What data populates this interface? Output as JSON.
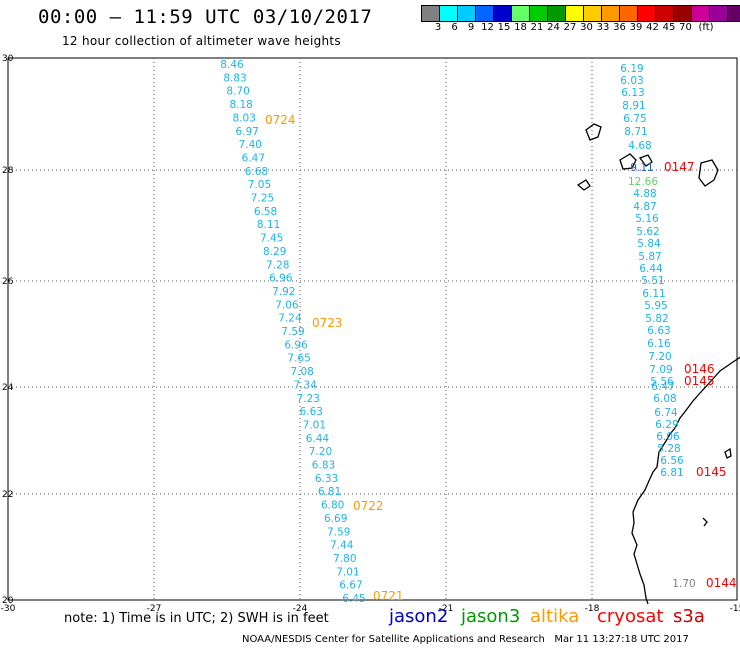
{
  "header": {
    "title": "00:00 – 11:59 UTC 03/10/2017",
    "subtitle": "12 hour collection of altimeter wave heights"
  },
  "colorbar": {
    "colors": [
      "#808080",
      "#00ffff",
      "#00ccff",
      "#0066ff",
      "#0000cc",
      "#66ff66",
      "#00cc00",
      "#009900",
      "#ffff00",
      "#ffcc00",
      "#ff9900",
      "#ff6600",
      "#ff0000",
      "#cc0000",
      "#990000",
      "#cc0099",
      "#990099",
      "#660066",
      "#000000"
    ],
    "labels": [
      "3",
      "6",
      "9",
      "12",
      "15",
      "18",
      "21",
      "24",
      "27",
      "30",
      "33",
      "36",
      "39",
      "42",
      "45",
      "70",
      "(ft)"
    ]
  },
  "map": {
    "lon_ticks": [
      "-30",
      "-27",
      "-24",
      "-21",
      "-18",
      "-15"
    ],
    "lat_ticks": [
      "30",
      "28",
      "26",
      "24",
      "22",
      "20"
    ]
  },
  "track_west": {
    "color": "#1fb3e8",
    "values": [
      "8.46",
      "8.83",
      "8.70",
      "8.18",
      "8.03",
      "6.97",
      "7.40",
      "6.47",
      "6.68",
      "7.05",
      "7.25",
      "6.58",
      "8.11",
      "7.45",
      "8.29",
      "7.28",
      "6.96",
      "7.92",
      "7.06",
      "7.24",
      "7.59",
      "6.96",
      "7.65",
      "7.08",
      "7.34",
      "7.23",
      "6.63",
      "7.01",
      "6.44",
      "7.20",
      "6.83",
      "6.33",
      "6.81",
      "6.80",
      "6.69",
      "7.59",
      "7.44",
      "7.80",
      "7.01",
      "6.67",
      "6.45"
    ],
    "times": [
      "0724",
      "0723",
      "0722",
      "0721"
    ],
    "time_color": "#ff9900"
  },
  "track_east": {
    "values": [
      "6.19",
      "6.03",
      "6.13",
      "8.91",
      "6.75",
      "8.71",
      "4.68",
      "9.11",
      "12.66",
      "4.88",
      "4.87",
      "5.16",
      "5.62",
      "5.84",
      "5.87",
      "6.44",
      "5.51",
      "6.11",
      "5.95",
      "5.82",
      "6.63",
      "6.16",
      "7.20",
      "7.09",
      "5.56",
      "6.47",
      "6.08",
      "6.74",
      "6.29",
      "6.06",
      "5.28",
      "6.56",
      "6.81",
      "1.70"
    ],
    "colors": [
      "#1fb3e8",
      "#1fb3e8",
      "#1fb3e8",
      "#1fb3e8",
      "#1fb3e8",
      "#1fb3e8",
      "#1fb3e8",
      "#1f5fd0",
      "#66cc66",
      "#1fb3e8",
      "#1fb3e8",
      "#1fb3e8",
      "#1fb3e8",
      "#1fb3e8",
      "#1fb3e8",
      "#1fb3e8",
      "#1fb3e8",
      "#1fb3e8",
      "#1fb3e8",
      "#1fb3e8",
      "#1fb3e8",
      "#1fb3e8",
      "#1fb3e8",
      "#1fb3e8",
      "#1fb3e8",
      "#1fb3e8",
      "#1fb3e8",
      "#1fb3e8",
      "#1fb3e8",
      "#1fb3e8",
      "#1fb3e8",
      "#1fb3e8",
      "#1fb3e8",
      "#808080"
    ],
    "times": [
      "0147",
      "0146",
      "0145",
      "0145",
      "0144"
    ],
    "time_color": "#ff0000"
  },
  "footer": {
    "note": "note: 1) Time is in UTC; 2) SWH is in feet",
    "legend": [
      {
        "label": "jason2",
        "color": "#0000cc"
      },
      {
        "label": "jason3",
        "color": "#009900"
      },
      {
        "label": "altika",
        "color": "#ff9900"
      },
      {
        "label": "cryosat",
        "color": "#ff0000"
      },
      {
        "label": "s3a",
        "color": "#cc0000"
      }
    ],
    "credit": "NOAA/NESDIS Center for Satellite Applications and Research   Mar 11 13:27:18 UTC 2017"
  }
}
